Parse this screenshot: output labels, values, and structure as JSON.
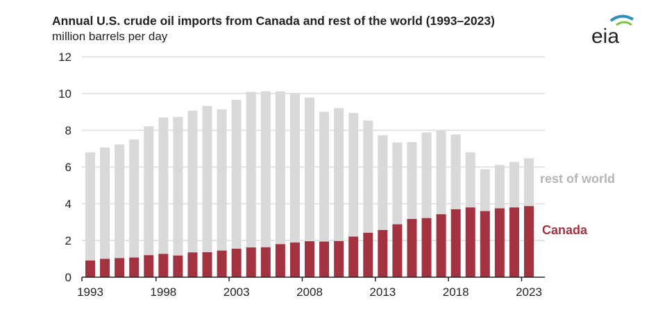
{
  "chart_data": {
    "type": "bar",
    "stacked": true,
    "title": "Annual U.S. crude oil imports from Canada and rest of the world (1993–2023)",
    "ylabel": "million barrels per day",
    "xlabel": "",
    "ylim": [
      0,
      12
    ],
    "yticks": [
      "0",
      "2",
      "4",
      "6",
      "8",
      "10",
      "12"
    ],
    "xtick_labels": [
      "1993",
      "1998",
      "2003",
      "2008",
      "2013",
      "2018",
      "2023"
    ],
    "grid": true,
    "categories": [
      1993,
      1994,
      1995,
      1996,
      1997,
      1998,
      1999,
      2000,
      2001,
      2002,
      2003,
      2004,
      2005,
      2006,
      2007,
      2008,
      2009,
      2010,
      2011,
      2012,
      2013,
      2014,
      2015,
      2016,
      2017,
      2018,
      2019,
      2020,
      2021,
      2022,
      2023
    ],
    "series": [
      {
        "name": "Canada",
        "color": "#a33340",
        "values": [
          0.91,
          1.0,
          1.04,
          1.07,
          1.2,
          1.27,
          1.18,
          1.35,
          1.36,
          1.45,
          1.55,
          1.62,
          1.63,
          1.8,
          1.89,
          1.96,
          1.94,
          1.97,
          2.21,
          2.42,
          2.57,
          2.88,
          3.17,
          3.22,
          3.43,
          3.7,
          3.8,
          3.6,
          3.75,
          3.8,
          3.87
        ]
      },
      {
        "name": "rest of world",
        "color": "#d9d9d9",
        "label_color": "#b5b5b5",
        "values": [
          5.89,
          6.06,
          6.19,
          6.43,
          7.02,
          7.43,
          7.55,
          7.72,
          7.97,
          7.69,
          8.11,
          8.47,
          8.5,
          8.32,
          8.14,
          7.82,
          7.07,
          7.24,
          6.73,
          6.11,
          5.16,
          4.46,
          4.19,
          4.66,
          4.54,
          4.07,
          3.0,
          2.28,
          2.36,
          2.48,
          2.61
        ]
      }
    ]
  },
  "logo_text": "eia"
}
